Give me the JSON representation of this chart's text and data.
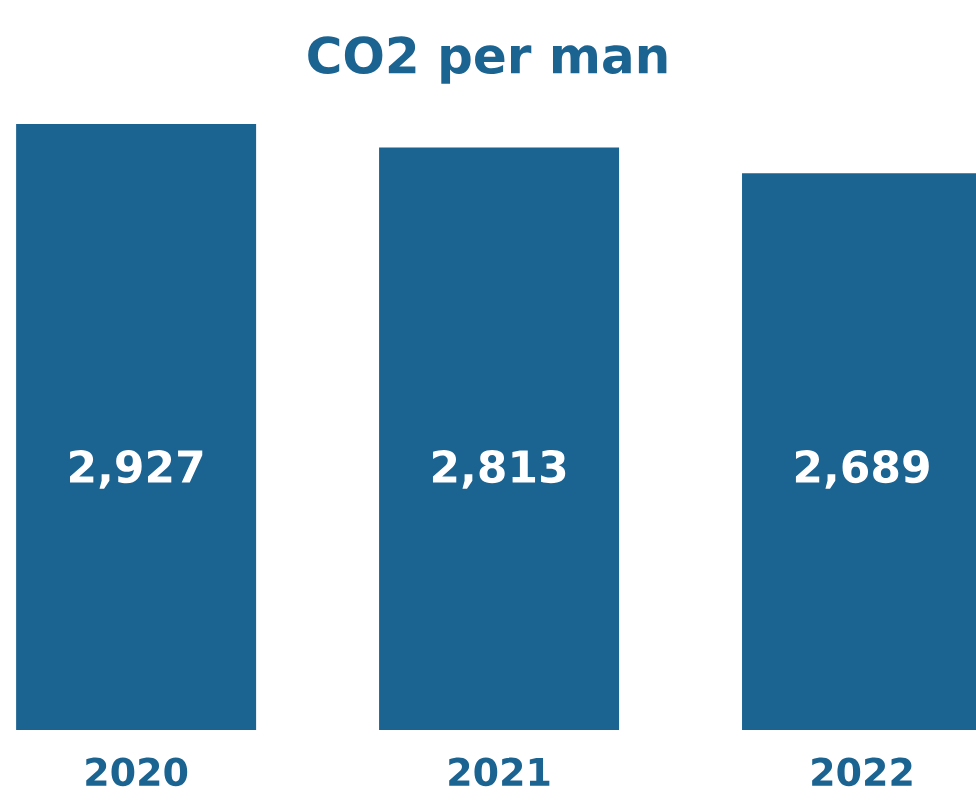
{
  "chart_data": {
    "type": "bar",
    "title": "CO2 per man",
    "categories": [
      "2020",
      "2021",
      "2022"
    ],
    "values": [
      2927,
      2813,
      2689
    ],
    "value_labels": [
      "2,927",
      "2,813",
      "2,689"
    ],
    "color": "#1b6391"
  }
}
